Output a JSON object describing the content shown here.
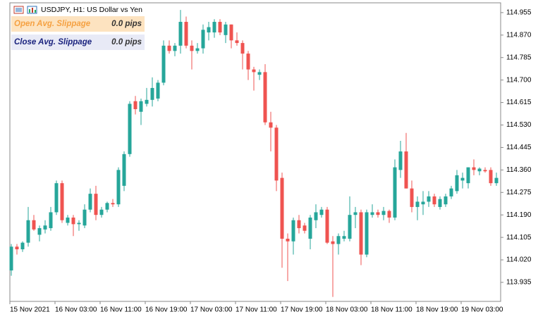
{
  "chart_data": {
    "type": "candlestick",
    "title": "USDJPY, H1:  US Dollar vs Yen",
    "up_color": "#26a69a",
    "down_color": "#ef5350",
    "panels": [
      {
        "label": "Open Avg. Slippage",
        "value": "0.0 pips",
        "color": "#f5a142",
        "background": "#fde3c0"
      },
      {
        "label": "Close Avg. Slippage",
        "value": "0.0 pips",
        "color": "#1a237e",
        "background": "#e8eaf6"
      }
    ],
    "xticks": [
      {
        "value": 0,
        "label": "15 Nov 2021"
      },
      {
        "value": 8,
        "label": "16 Nov 03:00"
      },
      {
        "value": 16,
        "label": "16 Nov 11:00"
      },
      {
        "value": 24,
        "label": "16 Nov 19:00"
      },
      {
        "value": 32,
        "label": "17 Nov 03:00"
      },
      {
        "value": 40,
        "label": "17 Nov 11:00"
      },
      {
        "value": 48,
        "label": "17 Nov 19:00"
      },
      {
        "value": 56,
        "label": "18 Nov 03:00"
      },
      {
        "value": 64,
        "label": "18 Nov 11:00"
      },
      {
        "value": 72,
        "label": "18 Nov 19:00"
      },
      {
        "value": 80,
        "label": "19 Nov 03:00"
      }
    ],
    "ylim": [
      113.863,
      114.992
    ],
    "yticks": [
      114.955,
      {
        "value": 114.87,
        "label": "114.870"
      },
      114.785,
      {
        "value": 114.7,
        "label": "114.700"
      },
      114.615,
      {
        "value": 114.53,
        "label": "114.530"
      },
      114.445,
      {
        "value": 114.36,
        "label": "114.360"
      },
      114.275,
      {
        "value": 114.19,
        "label": "114.190"
      },
      114.105,
      {
        "value": 114.02,
        "label": "114.020"
      },
      113.935
    ],
    "open": [
      113.98,
      114.07,
      114.06,
      114.085,
      114.17,
      114.115,
      114.135,
      114.14,
      114.2,
      114.31,
      114.16,
      114.18,
      114.155,
      114.15,
      114.21,
      114.27,
      114.19,
      114.21,
      114.235,
      114.23,
      114.3,
      114.42,
      114.62,
      114.58,
      114.61,
      114.625,
      114.63,
      114.69,
      114.83,
      114.81,
      114.83,
      114.92,
      114.83,
      114.81,
      114.82,
      114.88,
      114.88,
      114.92,
      114.87,
      114.91,
      114.85,
      114.84,
      114.8,
      114.74,
      114.72,
      114.73,
      114.54,
      114.52,
      114.33,
      114.1,
      114.09,
      114.17,
      114.15,
      114.1,
      114.17,
      114.19,
      114.21,
      114.09,
      114.08,
      114.1,
      114.1,
      114.19,
      114.2,
      114.04,
      114.19,
      114.2,
      114.19,
      114.205,
      114.18,
      114.36,
      114.43,
      114.29,
      114.22,
      114.23,
      114.24,
      114.26,
      114.22,
      114.23,
      114.26,
      114.28,
      114.32,
      114.31,
      114.37,
      114.355,
      114.36,
      114.36,
      114.31
    ],
    "high": [
      114.08,
      114.08,
      114.09,
      114.22,
      114.19,
      114.15,
      114.17,
      114.22,
      114.32,
      114.32,
      114.19,
      114.19,
      114.17,
      114.23,
      114.29,
      114.3,
      114.22,
      114.24,
      114.25,
      114.37,
      114.43,
      114.62,
      114.64,
      114.63,
      114.67,
      114.71,
      114.7,
      114.85,
      114.85,
      114.84,
      114.965,
      114.94,
      114.85,
      114.84,
      114.91,
      114.92,
      114.93,
      114.93,
      114.92,
      114.91,
      114.88,
      114.85,
      114.81,
      114.75,
      114.74,
      114.76,
      114.58,
      114.53,
      114.35,
      114.12,
      114.18,
      114.19,
      114.16,
      114.19,
      114.23,
      114.22,
      114.22,
      114.11,
      114.12,
      114.13,
      114.26,
      114.22,
      114.21,
      114.21,
      114.23,
      114.21,
      114.22,
      114.21,
      114.4,
      114.47,
      114.5,
      114.32,
      114.26,
      114.28,
      114.28,
      114.27,
      114.26,
      114.27,
      114.3,
      114.36,
      114.35,
      114.37,
      114.4,
      114.37,
      114.37,
      114.37,
      114.35
    ],
    "low": [
      113.96,
      114.04,
      114.05,
      114.07,
      114.13,
      114.09,
      114.12,
      114.13,
      114.19,
      114.16,
      114.15,
      114.11,
      114.13,
      114.14,
      114.2,
      114.17,
      114.18,
      114.2,
      114.22,
      114.22,
      114.28,
      114.41,
      114.57,
      114.53,
      114.6,
      114.6,
      114.62,
      114.68,
      114.8,
      114.79,
      114.8,
      114.82,
      114.74,
      114.8,
      114.8,
      114.85,
      114.86,
      114.87,
      114.84,
      114.82,
      114.83,
      114.74,
      114.7,
      114.66,
      114.7,
      114.53,
      114.43,
      114.28,
      113.99,
      113.94,
      114.04,
      114.12,
      114.12,
      114.06,
      114.14,
      114.18,
      114.08,
      113.88,
      114.04,
      114.09,
      114.09,
      114.14,
      114.0,
      114.03,
      114.18,
      114.18,
      114.17,
      114.16,
      114.17,
      114.33,
      114.29,
      114.2,
      114.17,
      114.19,
      114.22,
      114.22,
      114.21,
      114.22,
      114.25,
      114.27,
      114.29,
      114.29,
      114.34,
      114.34,
      114.35,
      114.3,
      114.3
    ],
    "close": [
      114.07,
      114.06,
      114.085,
      114.17,
      114.135,
      114.14,
      114.15,
      114.2,
      114.31,
      114.17,
      114.18,
      114.155,
      114.16,
      114.21,
      114.27,
      114.19,
      114.21,
      114.235,
      114.23,
      114.36,
      114.42,
      114.61,
      114.59,
      114.62,
      114.625,
      114.67,
      114.69,
      114.83,
      114.81,
      114.83,
      114.92,
      114.83,
      114.81,
      114.82,
      114.89,
      114.9,
      114.92,
      114.88,
      114.91,
      114.85,
      114.84,
      114.8,
      114.74,
      114.73,
      114.73,
      114.54,
      114.52,
      114.32,
      114.1,
      114.09,
      114.17,
      114.14,
      114.13,
      114.18,
      114.2,
      114.21,
      114.085,
      114.08,
      114.11,
      114.11,
      114.19,
      114.2,
      114.04,
      114.2,
      114.2,
      114.19,
      114.205,
      114.18,
      114.37,
      114.43,
      114.29,
      114.22,
      114.24,
      114.24,
      114.26,
      114.23,
      114.25,
      114.26,
      114.29,
      114.34,
      114.33,
      114.37,
      114.36,
      114.365,
      114.355,
      114.31,
      114.33
    ]
  }
}
